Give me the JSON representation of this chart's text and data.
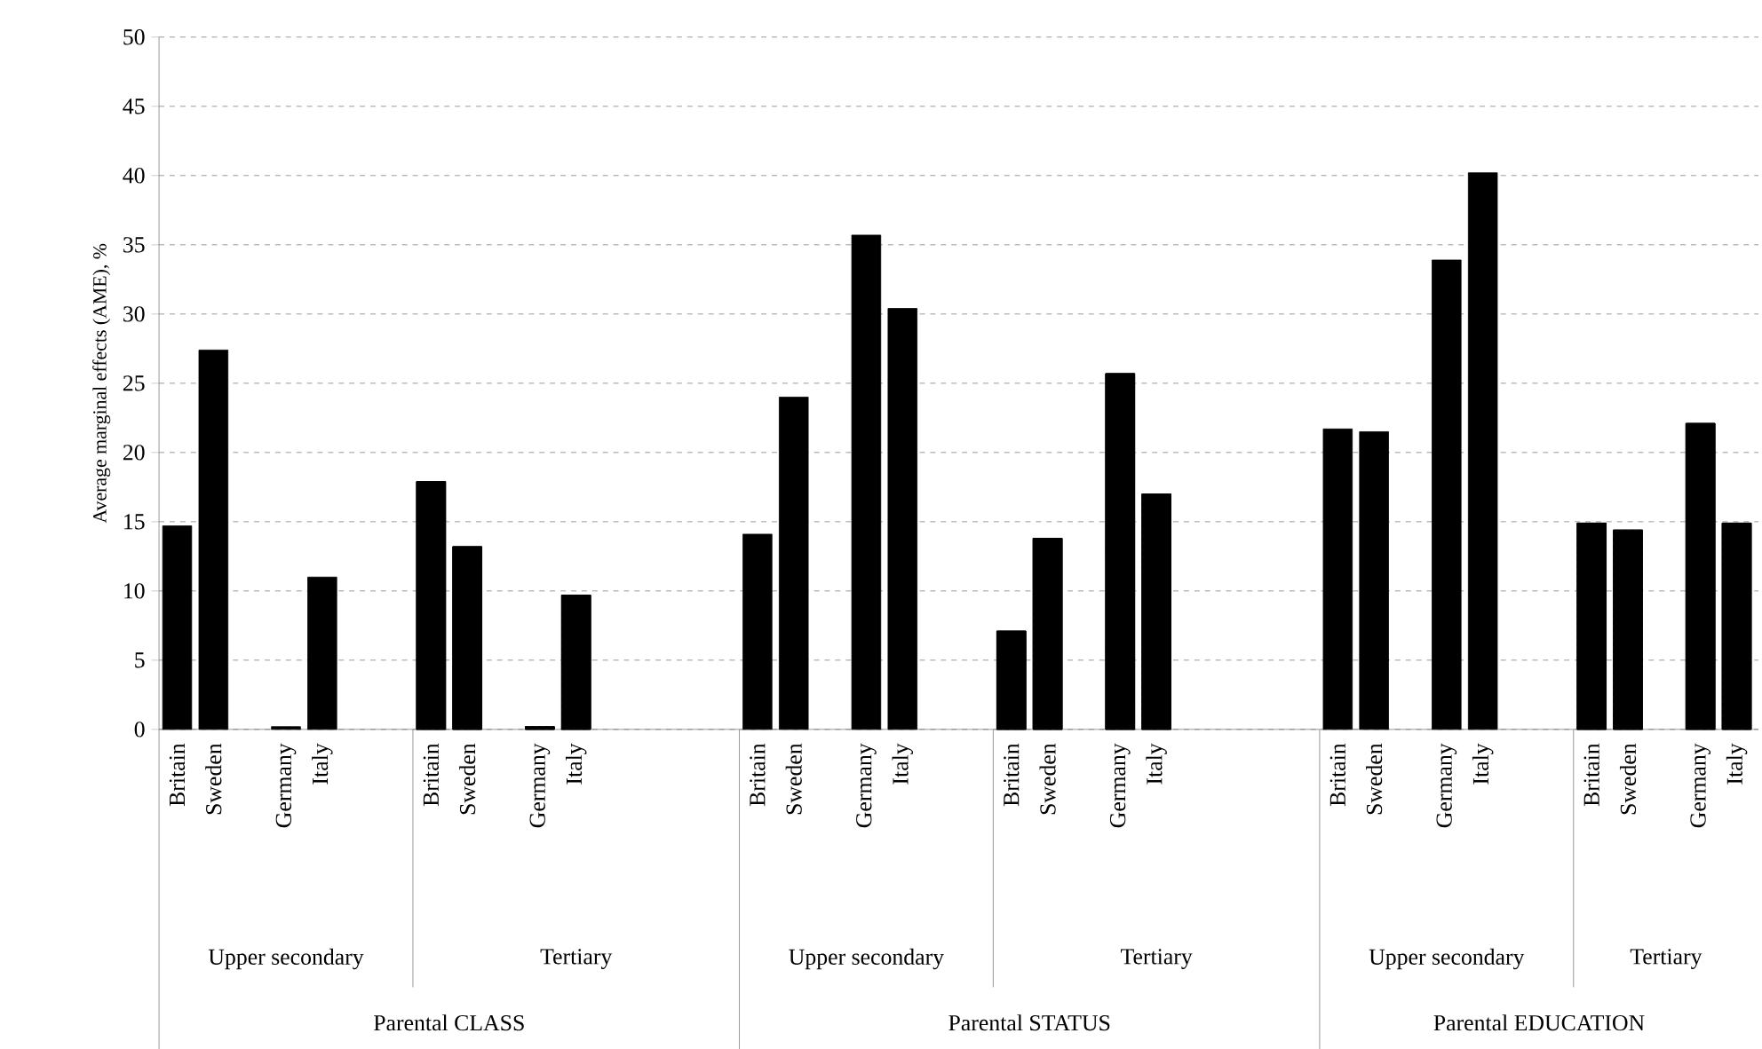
{
  "chart_data": {
    "type": "bar",
    "ylabel": "Average marginal effects (AME), %",
    "categories": [
      "Britain",
      "Sweden",
      null,
      "Germany",
      "Italy",
      null,
      null,
      "Britain",
      "Sweden",
      null,
      "Germany",
      "Italy",
      null,
      null,
      null,
      null,
      "Britain",
      "Sweden",
      null,
      "Germany",
      "Italy",
      null,
      null,
      "Britain",
      "Sweden",
      null,
      "Germany",
      "Italy",
      null,
      null,
      null,
      null,
      "Britain",
      "Sweden",
      null,
      "Germany",
      "Italy",
      null,
      null,
      "Britain",
      "Sweden",
      null,
      "Germany",
      "Italy"
    ],
    "series": [
      {
        "color": "#000000",
        "values": [
          14.7,
          27.4,
          null,
          0.2,
          11.0,
          null,
          null,
          null,
          null,
          null,
          null,
          null,
          null,
          null,
          null,
          null,
          14.1,
          24.0,
          null,
          35.7,
          30.4,
          null,
          null,
          null,
          null,
          null,
          null,
          null,
          null,
          null,
          null,
          null,
          21.7,
          21.5,
          null,
          33.9,
          40.2,
          null,
          null,
          null,
          null,
          null,
          null,
          null
        ]
      },
      {
        "color": "#000000",
        "values": [
          null,
          null,
          null,
          null,
          null,
          null,
          null,
          17.9,
          13.2,
          null,
          0.2,
          9.7,
          null,
          null,
          null,
          null,
          null,
          null,
          null,
          null,
          null,
          null,
          null,
          7.1,
          13.8,
          null,
          25.7,
          17.0,
          null,
          null,
          null,
          null,
          null,
          null,
          null,
          null,
          null,
          null,
          null,
          14.9,
          14.4,
          null,
          22.1,
          14.9
        ]
      }
    ],
    "ylim": [
      0,
      50
    ],
    "yticks": [
      0,
      5,
      10,
      15,
      20,
      25,
      30,
      35,
      40,
      45,
      50
    ],
    "grid": "y",
    "annotations": [
      "Upper secondary",
      "Tertiary",
      "Upper secondary",
      "Tertiary",
      "Upper secondary",
      "Tertiary",
      "Parental CLASS",
      "Parental STATUS",
      "Parental EDUCATION"
    ]
  }
}
